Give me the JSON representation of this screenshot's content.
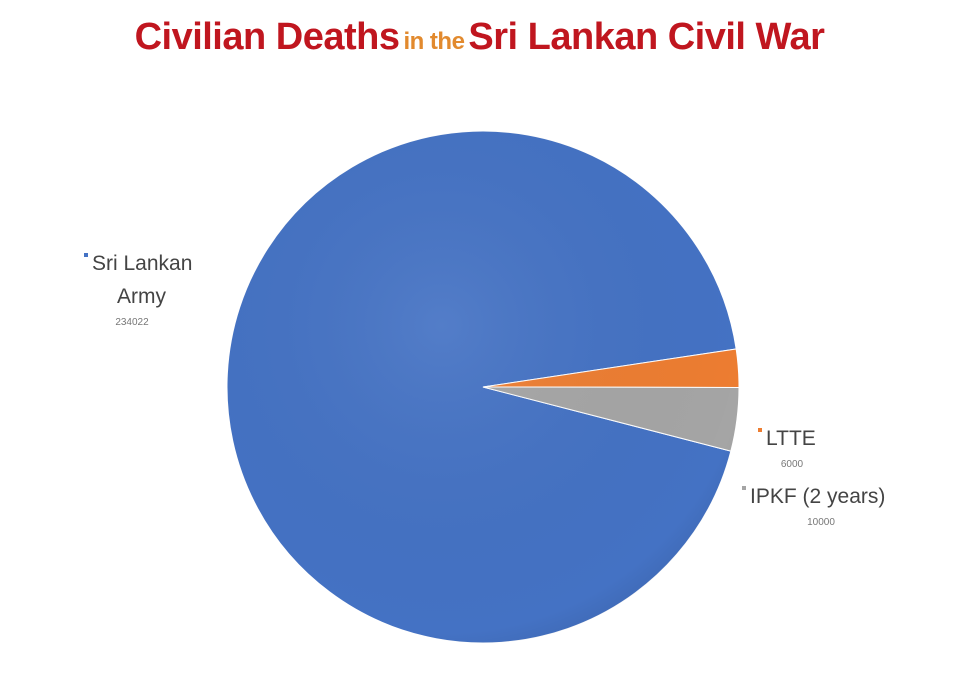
{
  "title_parts": {
    "part1": "Civilian Deaths",
    "part2": "in the",
    "part3": "Sri Lankan Civil War"
  },
  "chart_data": {
    "type": "pie",
    "title": "Civilian Deaths in the Sri Lankan Civil War",
    "legend": "none",
    "slices": [
      {
        "label": "Sri Lankan Army",
        "label_lines": [
          "Sri Lankan",
          "Army"
        ],
        "value": 234022,
        "value_text": "234022",
        "color": "#4472c4"
      },
      {
        "label": "LTTE",
        "label_lines": [
          "LTTE"
        ],
        "value": 6000,
        "value_text": "6000",
        "color": "#ed7d31"
      },
      {
        "label": "IPKF (2 years)",
        "label_lines": [
          "IPKF (2 years)"
        ],
        "value": 10000,
        "value_text": "10000",
        "color": "#a5a5a5"
      }
    ]
  }
}
